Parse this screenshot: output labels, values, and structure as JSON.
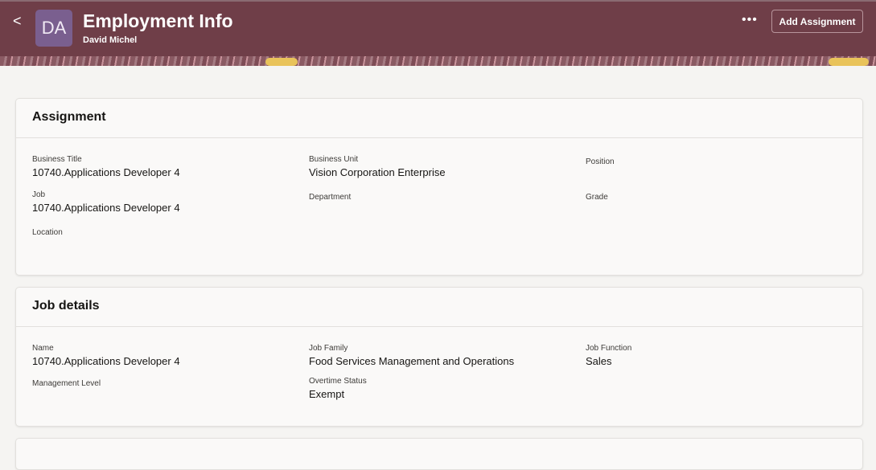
{
  "header": {
    "back_label": "<",
    "avatar_initials": "DA",
    "title": "Employment Info",
    "subtitle": "David Michel",
    "more_label": "•••",
    "add_assignment": "Add Assignment"
  },
  "assignment": {
    "title": "Assignment",
    "fields": [
      {
        "label": "Business Title",
        "value": "10740.Applications Developer 4"
      },
      {
        "label": "Business Unit",
        "value": "Vision Corporation Enterprise"
      },
      {
        "label": "Position",
        "value": ""
      },
      {
        "label": "Job",
        "value": "10740.Applications Developer 4"
      },
      {
        "label": "Department",
        "value": ""
      },
      {
        "label": "Grade",
        "value": ""
      },
      {
        "label": "Location",
        "value": ""
      }
    ]
  },
  "job_details": {
    "title": "Job details",
    "fields": [
      {
        "label": "Name",
        "value": "10740.Applications Developer 4"
      },
      {
        "label": "Job Family",
        "value": "Food Services Management and Operations"
      },
      {
        "label": "Job Function",
        "value": "Sales"
      },
      {
        "label": "Management Level",
        "value": ""
      },
      {
        "label": "Overtime Status",
        "value": "Exempt"
      }
    ]
  }
}
